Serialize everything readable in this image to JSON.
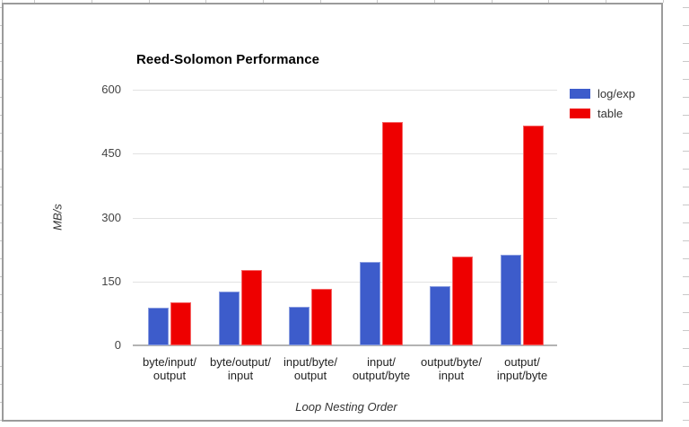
{
  "chart_data": {
    "type": "bar",
    "title": "Reed-Solomon Performance",
    "xlabel": "Loop Nesting Order",
    "ylabel": "MB/s",
    "ylim": [
      0,
      600
    ],
    "yticks": [
      0,
      150,
      300,
      450,
      600
    ],
    "grid": true,
    "legend_position": "top-right",
    "categories": [
      "byte/input/output",
      "byte/output/input",
      "input/byte/output",
      "input/output/byte",
      "output/byte/input",
      "output/input/byte"
    ],
    "category_label_lines": [
      [
        "byte/input/",
        "output"
      ],
      [
        "byte/output/",
        "input"
      ],
      [
        "input/byte/",
        "output"
      ],
      [
        "input/",
        "output/byte"
      ],
      [
        "output/byte/",
        "input"
      ],
      [
        "output/",
        "input/byte"
      ]
    ],
    "series": [
      {
        "name": "log/exp",
        "color": "#3D5CCB",
        "values": [
          88,
          126,
          90,
          196,
          139,
          213
        ]
      },
      {
        "name": "table",
        "color": "#EE0000",
        "values": [
          101,
          176,
          132,
          525,
          209,
          515
        ]
      }
    ]
  },
  "colors": {
    "frame_border": "#9b9b9b",
    "gridline": "#e2e2e2",
    "axis_line": "#b3b3b3",
    "sheet_gridline": "#c9c9c9"
  }
}
